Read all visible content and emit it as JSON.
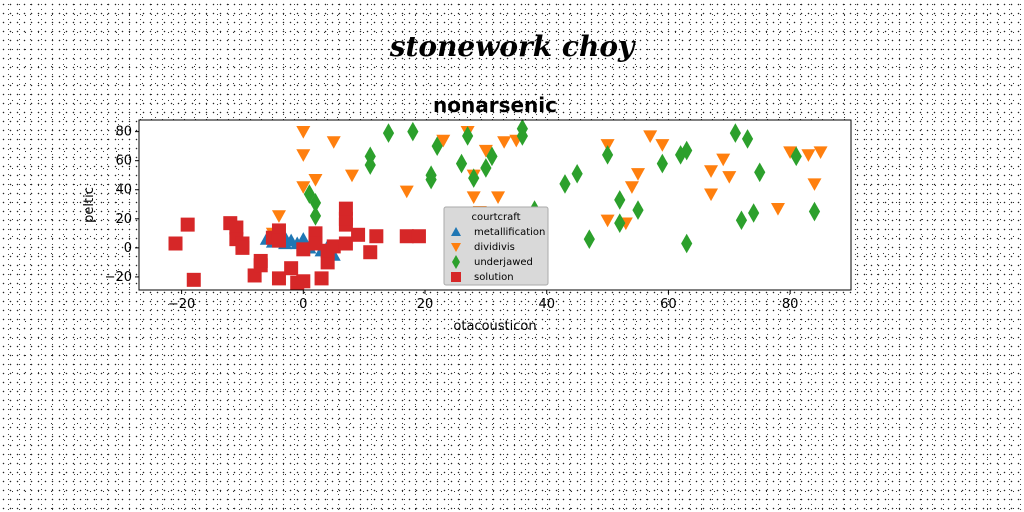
{
  "suptitle": "stonework choy",
  "chart_data": {
    "type": "scatter",
    "title": "nonarsenic",
    "xlabel": "otacousticon",
    "ylabel": "peltic",
    "xlim": [
      -27,
      90
    ],
    "ylim": [
      -29,
      88
    ],
    "xticks": [
      -20,
      0,
      20,
      40,
      60,
      80
    ],
    "yticks": [
      -20,
      0,
      20,
      40,
      60,
      80
    ],
    "grid": false,
    "legend": {
      "title": "courtcraft",
      "placement": "center"
    },
    "series": [
      {
        "name": "metallification",
        "marker": "triangle-up",
        "color": "#1f77b4",
        "points": [
          [
            -5,
            4
          ],
          [
            -4,
            6
          ],
          [
            -3,
            7
          ],
          [
            -2,
            5
          ],
          [
            -1,
            3
          ],
          [
            0,
            2
          ],
          [
            1,
            0
          ],
          [
            2,
            2
          ],
          [
            3,
            -2
          ],
          [
            4,
            1
          ],
          [
            5,
            -5
          ],
          [
            -6,
            6
          ],
          [
            -3,
            3
          ],
          [
            0,
            6
          ],
          [
            2,
            4
          ]
        ]
      },
      {
        "name": "dividivis",
        "marker": "triangle-down",
        "color": "#ff7f0e",
        "points": [
          [
            0,
            80
          ],
          [
            0,
            64
          ],
          [
            0,
            42
          ],
          [
            2,
            47
          ],
          [
            5,
            73
          ],
          [
            8,
            50
          ],
          [
            -4,
            22
          ],
          [
            17,
            39
          ],
          [
            23,
            74
          ],
          [
            27,
            80
          ],
          [
            28,
            50
          ],
          [
            28,
            35
          ],
          [
            29,
            25
          ],
          [
            30,
            67
          ],
          [
            32,
            35
          ],
          [
            33,
            73
          ],
          [
            35,
            74
          ],
          [
            50,
            19
          ],
          [
            50,
            71
          ],
          [
            53,
            17
          ],
          [
            54,
            42
          ],
          [
            55,
            51
          ],
          [
            57,
            77
          ],
          [
            59,
            71
          ],
          [
            67,
            37
          ],
          [
            67,
            53
          ],
          [
            69,
            61
          ],
          [
            70,
            49
          ],
          [
            78,
            27
          ],
          [
            80,
            66
          ],
          [
            83,
            64
          ],
          [
            84,
            44
          ],
          [
            85,
            66
          ],
          [
            25,
            0
          ],
          [
            -5,
            10
          ]
        ]
      },
      {
        "name": "underjawed",
        "marker": "diamond",
        "color": "#2ca02c",
        "points": [
          [
            1,
            37
          ],
          [
            2,
            31
          ],
          [
            2,
            22
          ],
          [
            11,
            63
          ],
          [
            11,
            57
          ],
          [
            14,
            79
          ],
          [
            18,
            80
          ],
          [
            21,
            50
          ],
          [
            21,
            47
          ],
          [
            22,
            70
          ],
          [
            26,
            58
          ],
          [
            27,
            77
          ],
          [
            28,
            48
          ],
          [
            30,
            55
          ],
          [
            31,
            63
          ],
          [
            36,
            77
          ],
          [
            36,
            82
          ],
          [
            38,
            26
          ],
          [
            43,
            44
          ],
          [
            45,
            51
          ],
          [
            47,
            6
          ],
          [
            50,
            64
          ],
          [
            52,
            33
          ],
          [
            52,
            17
          ],
          [
            55,
            26
          ],
          [
            59,
            58
          ],
          [
            62,
            64
          ],
          [
            63,
            67
          ],
          [
            63,
            3
          ],
          [
            71,
            79
          ],
          [
            72,
            19
          ],
          [
            73,
            75
          ],
          [
            74,
            24
          ],
          [
            75,
            52
          ],
          [
            81,
            63
          ],
          [
            84,
            25
          ]
        ]
      },
      {
        "name": "solution",
        "marker": "square",
        "color": "#d62728",
        "points": [
          [
            -21,
            3
          ],
          [
            -19,
            16
          ],
          [
            -18,
            -22
          ],
          [
            -12,
            17
          ],
          [
            -11,
            14
          ],
          [
            -11,
            6
          ],
          [
            -10,
            3
          ],
          [
            -10,
            0
          ],
          [
            -8,
            -19
          ],
          [
            -7,
            -12
          ],
          [
            -7,
            -9
          ],
          [
            -5,
            7
          ],
          [
            -4,
            -21
          ],
          [
            -4,
            12
          ],
          [
            -4,
            5
          ],
          [
            -2,
            -14
          ],
          [
            -1,
            -24
          ],
          [
            0,
            -1
          ],
          [
            0,
            -23
          ],
          [
            2,
            10
          ],
          [
            2,
            3
          ],
          [
            3,
            -21
          ],
          [
            4,
            -10
          ],
          [
            4,
            -2
          ],
          [
            5,
            1
          ],
          [
            7,
            3
          ],
          [
            7,
            16
          ],
          [
            7,
            20
          ],
          [
            7,
            27
          ],
          [
            9,
            9
          ],
          [
            11,
            -3
          ],
          [
            12,
            8
          ],
          [
            17,
            8
          ],
          [
            19,
            8
          ]
        ]
      }
    ]
  }
}
